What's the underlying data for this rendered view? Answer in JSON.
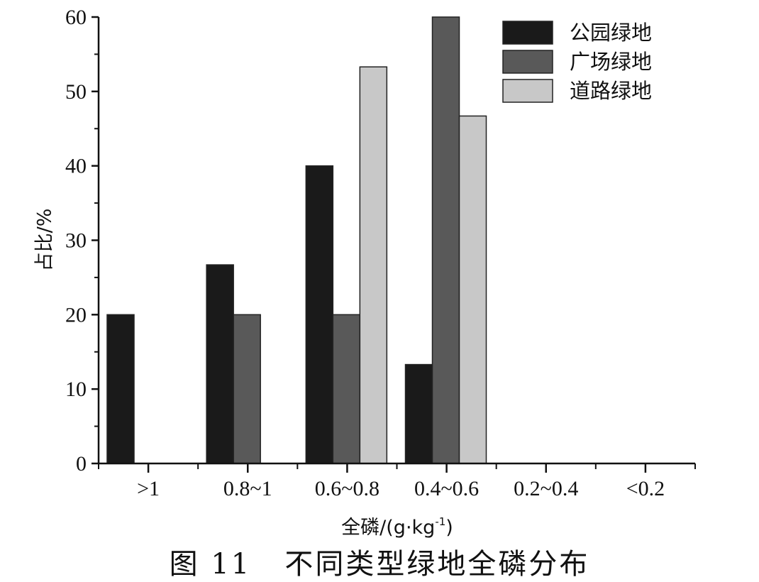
{
  "figure_caption": "图 11   不同类型绿地全磷分布",
  "chart_data": {
    "type": "bar",
    "title": "",
    "xlabel_main": "全磷/(g·kg",
    "xlabel_sup": "-1",
    "xlabel_tail": ")",
    "ylabel": "占比/%",
    "ylim": [
      0,
      60
    ],
    "yticks": [
      "0",
      "10",
      "20",
      "30",
      "40",
      "50",
      "60"
    ],
    "categories": [
      ">1",
      "0.8~1",
      "0.6~0.8",
      "0.4~0.6",
      "0.2~0.4",
      "<0.2"
    ],
    "series": [
      {
        "name": "公园绿地",
        "color": "#1a1a1a",
        "values": [
          20,
          26.7,
          40,
          13.3,
          0,
          0
        ]
      },
      {
        "name": "广场绿地",
        "color": "#595959",
        "values": [
          0,
          20,
          20,
          60,
          0,
          0
        ]
      },
      {
        "name": "道路绿地",
        "color": "#c8c8c8",
        "values": [
          0,
          0,
          53.3,
          46.7,
          0,
          0
        ]
      }
    ],
    "legend_position": "top-right",
    "grid": false
  }
}
